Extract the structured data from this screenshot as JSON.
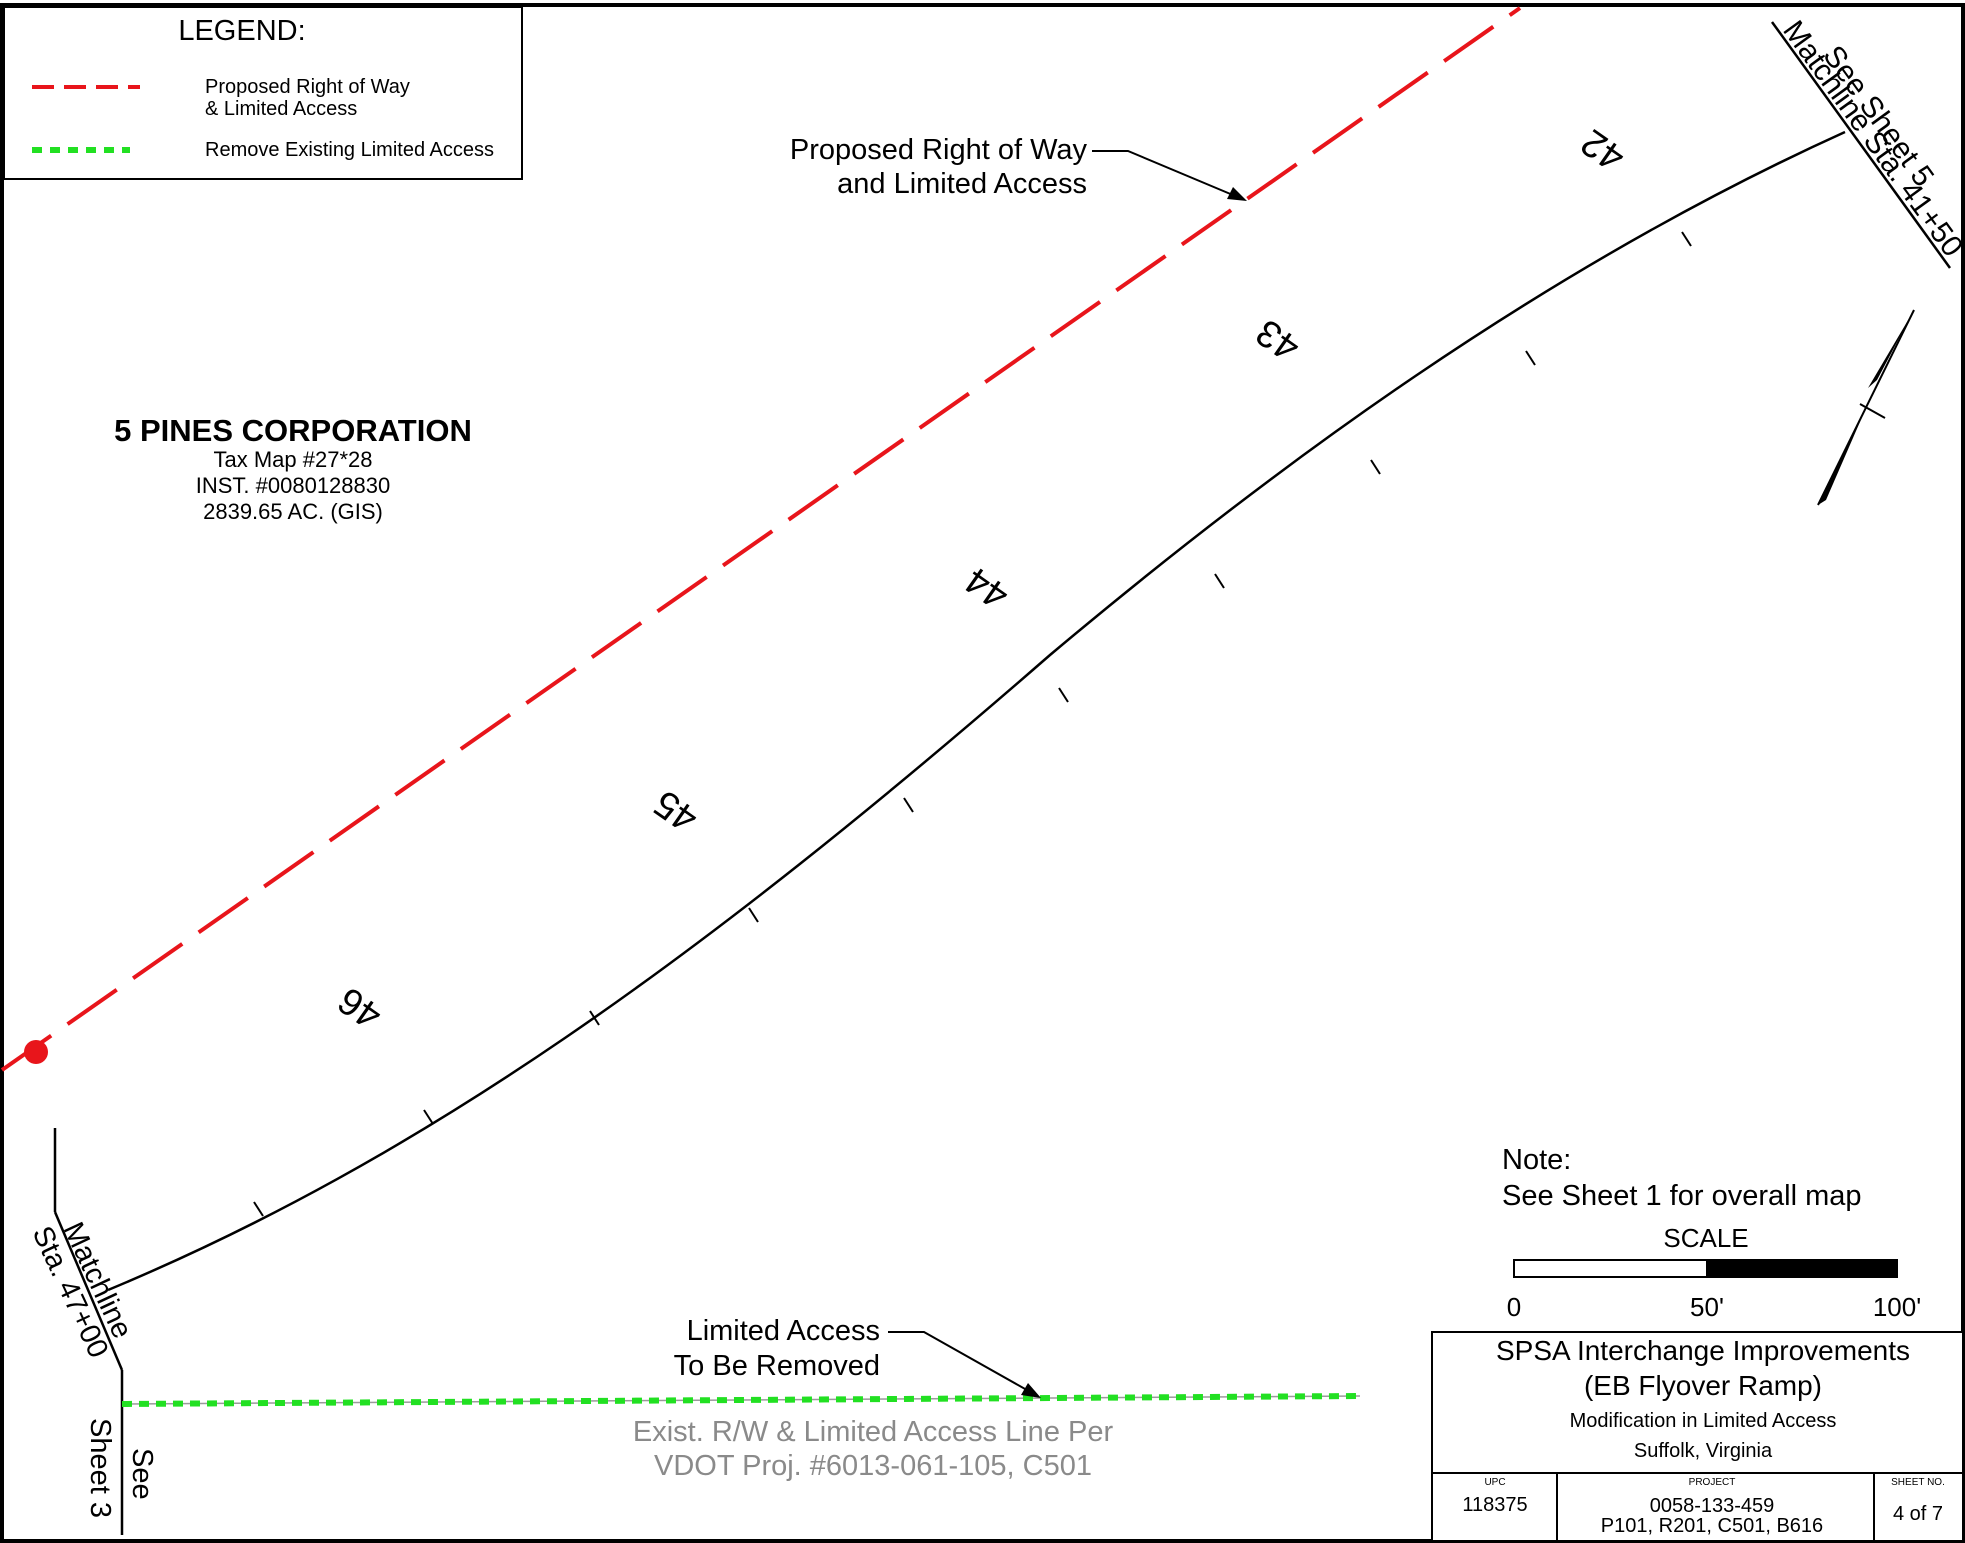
{
  "legend": {
    "title": "LEGEND:",
    "items": [
      {
        "label_line1": "Proposed Right of Way",
        "label_line2": "& Limited Access",
        "color": "#e8151b",
        "style": "dashed"
      },
      {
        "label_line1": "Remove Existing Limited Access",
        "label_line2": "",
        "color": "#22e022",
        "style": "dotted"
      }
    ]
  },
  "owner": {
    "name": "5 PINES CORPORATION",
    "tax_map": "Tax Map #27*28",
    "instrument": "INST. #0080128830",
    "acreage": "2839.65 AC. (GIS)"
  },
  "callouts": {
    "proposed_line1": "Proposed Right of Way",
    "proposed_line2": "and Limited Access",
    "removed_line1": "Limited Access",
    "removed_line2": "To Be Removed",
    "existing_line1": "Exist.  R/W & Limited Access Line Per",
    "existing_line2": "VDOT Proj.  #6013-061-105,  C501"
  },
  "stations": [
    "42",
    "43",
    "44",
    "45",
    "46"
  ],
  "matchlines": {
    "upper_line1": "See Sheet 5",
    "upper_line2": "Matchline Sta. 41+50",
    "lower_line1": "Matchline",
    "lower_line2": "Sta. 47+00",
    "see_line1": "See",
    "see_line2": "Sheet 3"
  },
  "note": {
    "title": "Note:",
    "text": "See Sheet 1 for overall map"
  },
  "scale": {
    "title": "SCALE",
    "labels": [
      "0",
      "50'",
      "100'"
    ]
  },
  "title_block": {
    "project_name": "SPSA Interchange Improvements",
    "project_sub": "(EB Flyover Ramp)",
    "description": "Modification in Limited Access",
    "location": "Suffolk, Virginia",
    "upc_label": "UPC",
    "upc_value": "118375",
    "project_label": "PROJECT",
    "project_value1": "0058-133-459",
    "project_value2": "P101, R201, C501, B616",
    "sheet_label": "SHEET NO.",
    "sheet_value": "4 of  7"
  },
  "colors": {
    "proposed_row": "#e8151b",
    "removed_la": "#22e022",
    "existing_text": "#8a8a8a",
    "centerline": "#000000"
  }
}
